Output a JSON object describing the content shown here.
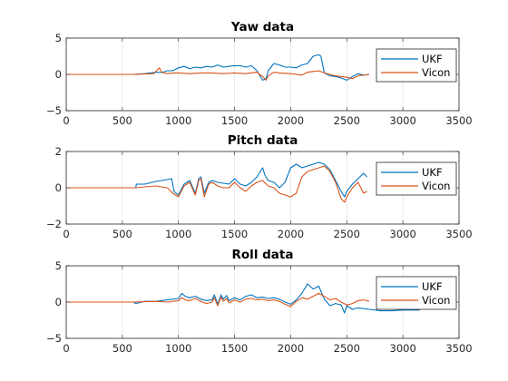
{
  "chart_data": [
    {
      "type": "line",
      "title": "Yaw data",
      "xlim": [
        0,
        3500
      ],
      "ylim": [
        -5,
        5
      ],
      "xticks": [
        0,
        500,
        1000,
        1500,
        2000,
        2500,
        3000,
        3500
      ],
      "yticks": [
        -5,
        0,
        5
      ],
      "grid": "vertical",
      "legend_position": "top-right",
      "legend": [
        "UKF",
        "Vicon"
      ],
      "series": [
        {
          "name": "UKF",
          "color": "#0072BD",
          "x": [
            0,
            600,
            650,
            700,
            750,
            800,
            850,
            900,
            950,
            1000,
            1050,
            1100,
            1150,
            1200,
            1250,
            1300,
            1350,
            1400,
            1450,
            1500,
            1550,
            1600,
            1650,
            1700,
            1750,
            1780,
            1800,
            1850,
            1900,
            1950,
            2000,
            2050,
            2100,
            2150,
            2200,
            2250,
            2270,
            2300,
            2350,
            2400,
            2450,
            2500,
            2550,
            2600,
            2650,
            2700
          ],
          "y": [
            0,
            0,
            0.05,
            0.1,
            0.2,
            0.3,
            0.25,
            0.5,
            0.5,
            0.9,
            1.1,
            0.8,
            1.0,
            0.9,
            1.1,
            1.0,
            1.3,
            1.0,
            1.1,
            1.2,
            1.2,
            1.0,
            1.2,
            0.5,
            -0.8,
            -0.6,
            0.5,
            1.5,
            1.3,
            1.0,
            1.0,
            0.9,
            1.3,
            1.5,
            2.5,
            2.7,
            2.5,
            0.2,
            -0.2,
            -0.3,
            -0.5,
            -0.8,
            -0.3,
            0.1,
            -0.1,
            0.0
          ]
        },
        {
          "name": "Vicon",
          "color": "#D95319",
          "x": [
            0,
            600,
            700,
            780,
            830,
            850,
            900,
            950,
            1000,
            1100,
            1200,
            1300,
            1400,
            1500,
            1600,
            1700,
            1750,
            1780,
            1800,
            1850,
            1900,
            2000,
            2100,
            2150,
            2200,
            2250,
            2300,
            2400,
            2450,
            2500,
            2550,
            2600,
            2700
          ],
          "y": [
            0,
            0,
            0.05,
            0.1,
            0.9,
            0.3,
            0.1,
            0.2,
            0.2,
            0.1,
            0.2,
            0.2,
            0.1,
            0.2,
            0.1,
            0.3,
            -0.3,
            -0.8,
            -0.2,
            0.3,
            0.2,
            0.1,
            -0.1,
            0.3,
            0.4,
            0.5,
            0.2,
            -0.2,
            -0.3,
            -0.4,
            -0.6,
            -0.2,
            0.0
          ]
        }
      ]
    },
    {
      "type": "line",
      "title": "Pitch data",
      "xlim": [
        0,
        3500
      ],
      "ylim": [
        -2,
        2
      ],
      "xticks": [
        0,
        500,
        1000,
        1500,
        2000,
        2500,
        3000,
        3500
      ],
      "yticks": [
        -2,
        0,
        2
      ],
      "grid": "vertical",
      "legend_position": "top-right",
      "legend": [
        "UKF",
        "Vicon"
      ],
      "series": [
        {
          "name": "UKF",
          "color": "#0072BD",
          "x": [
            0,
            620,
            625,
            700,
            800,
            900,
            940,
            960,
            1000,
            1050,
            1100,
            1150,
            1180,
            1200,
            1230,
            1270,
            1300,
            1350,
            1400,
            1450,
            1500,
            1550,
            1600,
            1650,
            1700,
            1750,
            1770,
            1800,
            1850,
            1900,
            1950,
            2000,
            2050,
            2100,
            2150,
            2200,
            2250,
            2300,
            2350,
            2400,
            2450,
            2480,
            2500,
            2550,
            2600,
            2650,
            2680
          ],
          "y": [
            0,
            0,
            0.2,
            0.2,
            0.35,
            0.45,
            0.5,
            -0.2,
            -0.4,
            0.2,
            0.4,
            -0.3,
            0.5,
            0.6,
            -0.3,
            0.3,
            0.4,
            0.3,
            0.25,
            0.2,
            0.5,
            0.2,
            0.1,
            0.3,
            0.6,
            1.1,
            0.7,
            0.4,
            0.3,
            0.0,
            0.3,
            1.1,
            1.3,
            1.1,
            1.2,
            1.3,
            1.4,
            1.3,
            1.0,
            0.4,
            -0.2,
            -0.5,
            -0.2,
            0.2,
            0.5,
            0.8,
            0.6
          ]
        },
        {
          "name": "Vicon",
          "color": "#D95319",
          "x": [
            0,
            620,
            700,
            800,
            900,
            950,
            1000,
            1050,
            1100,
            1150,
            1180,
            1200,
            1230,
            1270,
            1300,
            1350,
            1400,
            1450,
            1500,
            1550,
            1600,
            1650,
            1700,
            1750,
            1800,
            1850,
            1900,
            1950,
            2000,
            2050,
            2100,
            2150,
            2200,
            2250,
            2300,
            2350,
            2400,
            2450,
            2480,
            2500,
            2550,
            2600,
            2650,
            2680
          ],
          "y": [
            0,
            0,
            0.05,
            0.1,
            0.0,
            -0.3,
            -0.5,
            0.1,
            0.3,
            -0.4,
            0.4,
            0.5,
            -0.5,
            0.2,
            0.3,
            0.1,
            0.0,
            0.0,
            0.3,
            0.0,
            -0.2,
            0.1,
            0.3,
            0.4,
            0.1,
            0.0,
            -0.3,
            -0.4,
            -0.5,
            -0.3,
            0.6,
            0.9,
            1.0,
            1.1,
            1.2,
            0.9,
            0.3,
            -0.6,
            -0.8,
            -0.5,
            0.0,
            0.3,
            -0.3,
            -0.2
          ]
        }
      ]
    },
    {
      "type": "line",
      "title": "Roll data",
      "xlim": [
        0,
        3500
      ],
      "ylim": [
        -5,
        5
      ],
      "xticks": [
        0,
        500,
        1000,
        1500,
        2000,
        2500,
        3000,
        3500
      ],
      "yticks": [
        -5,
        0,
        5
      ],
      "grid": "vertical",
      "legend_position": "top-right",
      "legend": [
        "UKF",
        "Vicon"
      ],
      "series": [
        {
          "name": "UKF",
          "color": "#0072BD",
          "x": [
            0,
            600,
            620,
            700,
            800,
            900,
            1000,
            1030,
            1060,
            1100,
            1150,
            1200,
            1250,
            1300,
            1320,
            1350,
            1380,
            1400,
            1430,
            1450,
            1500,
            1550,
            1600,
            1650,
            1700,
            1750,
            1800,
            1850,
            1900,
            1950,
            2000,
            2050,
            2100,
            2150,
            2200,
            2250,
            2300,
            2350,
            2400,
            2450,
            2480,
            2500,
            2550,
            2600,
            2700,
            2800,
            2900,
            3000,
            3150
          ],
          "y": [
            0,
            0,
            -0.2,
            0.1,
            0.1,
            0.3,
            0.5,
            1.2,
            0.8,
            0.6,
            0.8,
            0.4,
            0.2,
            0.3,
            1.0,
            -0.3,
            1.0,
            0.4,
            0.9,
            0.2,
            0.6,
            0.3,
            0.8,
            1.0,
            0.6,
            0.7,
            0.5,
            0.6,
            0.4,
            0.0,
            -0.3,
            0.3,
            1.2,
            2.5,
            1.8,
            2.2,
            0.4,
            -0.5,
            -0.2,
            -0.4,
            -1.5,
            -0.5,
            -1.0,
            -0.8,
            -1.0,
            -1.2,
            -1.2,
            -1.1,
            -1.1
          ]
        },
        {
          "name": "Vicon",
          "color": "#D95319",
          "x": [
            0,
            600,
            700,
            800,
            900,
            1000,
            1030,
            1060,
            1100,
            1150,
            1200,
            1250,
            1300,
            1320,
            1350,
            1380,
            1400,
            1430,
            1450,
            1500,
            1550,
            1600,
            1650,
            1700,
            1750,
            1800,
            1850,
            1900,
            1950,
            2000,
            2050,
            2100,
            2150,
            2200,
            2250,
            2300,
            2350,
            2400,
            2450,
            2500,
            2550,
            2600,
            2650,
            2700
          ],
          "y": [
            0,
            0,
            0.05,
            0.1,
            0.0,
            0.2,
            0.6,
            0.3,
            0.2,
            0.5,
            0.1,
            -0.2,
            0.0,
            0.6,
            -0.5,
            0.7,
            0.1,
            0.5,
            -0.1,
            0.3,
            0.0,
            0.4,
            0.5,
            0.3,
            0.4,
            0.2,
            0.3,
            0.1,
            -0.3,
            -0.6,
            0.1,
            0.6,
            0.4,
            0.8,
            1.2,
            0.8,
            0.3,
            0.5,
            0.0,
            -0.4,
            -0.2,
            0.2,
            0.3,
            0.1
          ]
        }
      ]
    }
  ]
}
